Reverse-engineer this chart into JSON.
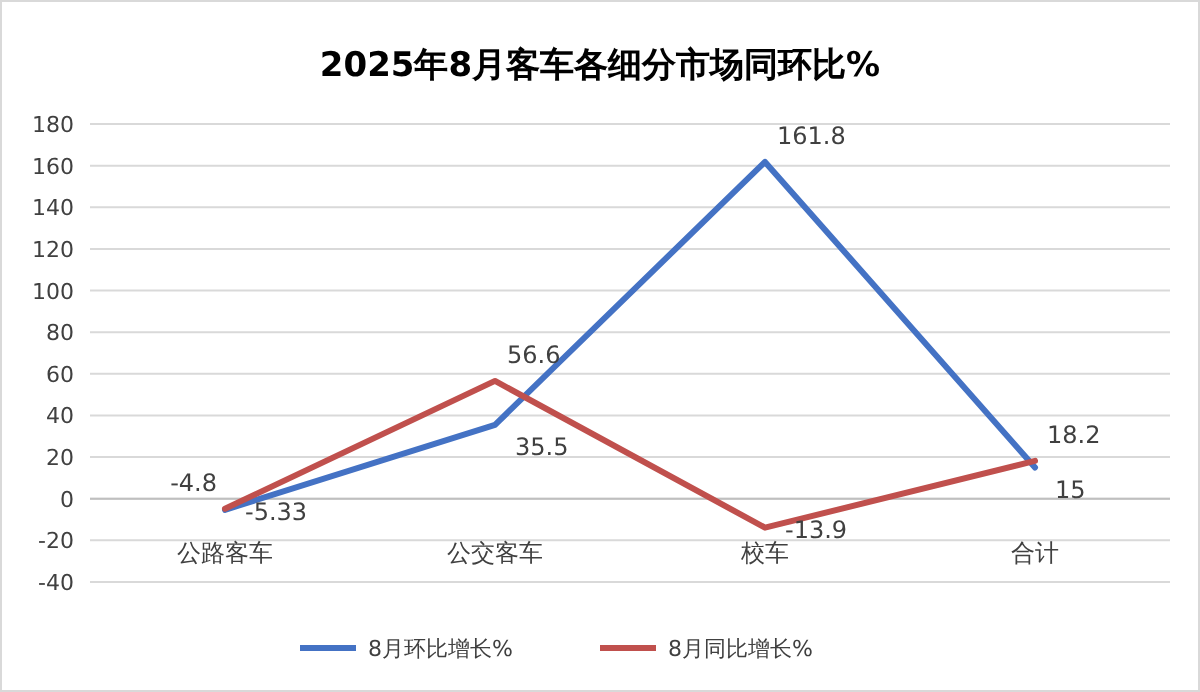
{
  "chart_data": {
    "type": "line",
    "title": "2025年8月客车各细分市场同环比%",
    "categories": [
      "公路客车",
      "公交客车",
      "校车",
      "合计"
    ],
    "series": [
      {
        "name": "8月环比增长%",
        "color": "#4472c4",
        "values": [
          -5.33,
          35.5,
          161.8,
          15
        ]
      },
      {
        "name": "8月同比增长%",
        "color": "#c0504d",
        "values": [
          -4.8,
          56.6,
          -13.9,
          18.2
        ]
      }
    ],
    "ylim": [
      -40,
      180
    ],
    "yticks": [
      -40,
      -20,
      0,
      20,
      40,
      60,
      80,
      100,
      120,
      140,
      160,
      180
    ],
    "grid": "y",
    "legend": "bottom",
    "data_labels": true,
    "marker": "none",
    "line_style": "solid"
  }
}
